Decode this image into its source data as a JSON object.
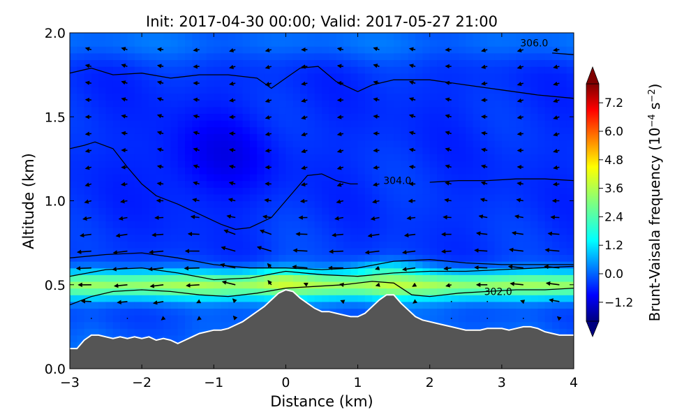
{
  "chart_data": {
    "type": "heatmap",
    "title": "Init: 2017-04-30 00:00; Valid: 2017-05-27 21:00",
    "xlabel": "Distance (km)",
    "ylabel": "Altitude (km)",
    "xlim": [
      -3,
      4
    ],
    "ylim": [
      0,
      2
    ],
    "xticks": [
      -3,
      -2,
      -1,
      0,
      1,
      2,
      3,
      4
    ],
    "xtick_labels": [
      "−3",
      "−2",
      "−1",
      "0",
      "1",
      "2",
      "3",
      "4"
    ],
    "yticks": [
      0.0,
      0.5,
      1.0,
      1.5,
      2.0
    ],
    "ytick_labels": [
      "0.0",
      "0.5",
      "1.0",
      "1.5",
      "2.0"
    ],
    "colorbar": {
      "label_prefix": "Brunt-Vaisala frequency (10",
      "label_exp1": "−4",
      "label_mid": " s",
      "label_exp2": "−2",
      "label_suffix": ")",
      "min": -2.0,
      "max": 8.0,
      "ticks": [
        -1.2,
        0.0,
        1.2,
        2.4,
        3.6,
        4.8,
        6.0,
        7.2
      ],
      "tick_labels": [
        "−1.2",
        "0.0",
        "1.2",
        "2.4",
        "3.6",
        "4.8",
        "6.0",
        "7.2"
      ],
      "extend": "both",
      "colormap": "jet"
    },
    "terrain": {
      "color": "#555555",
      "edge_color": "#ffffff",
      "x": [
        -3.0,
        -2.9,
        -2.8,
        -2.7,
        -2.6,
        -2.5,
        -2.4,
        -2.3,
        -2.2,
        -2.1,
        -2.0,
        -1.9,
        -1.8,
        -1.7,
        -1.6,
        -1.5,
        -1.4,
        -1.3,
        -1.2,
        -1.1,
        -1.0,
        -0.9,
        -0.8,
        -0.7,
        -0.6,
        -0.5,
        -0.4,
        -0.3,
        -0.2,
        -0.1,
        0.0,
        0.1,
        0.2,
        0.3,
        0.4,
        0.5,
        0.6,
        0.7,
        0.8,
        0.9,
        1.0,
        1.1,
        1.2,
        1.3,
        1.4,
        1.5,
        1.6,
        1.7,
        1.8,
        1.9,
        2.0,
        2.1,
        2.2,
        2.3,
        2.4,
        2.5,
        2.6,
        2.7,
        2.8,
        2.9,
        3.0,
        3.1,
        3.2,
        3.3,
        3.4,
        3.5,
        3.6,
        3.7,
        3.8,
        3.9,
        4.0
      ],
      "y": [
        0.12,
        0.12,
        0.17,
        0.2,
        0.2,
        0.19,
        0.18,
        0.19,
        0.18,
        0.19,
        0.18,
        0.19,
        0.17,
        0.18,
        0.17,
        0.15,
        0.17,
        0.19,
        0.21,
        0.22,
        0.23,
        0.23,
        0.24,
        0.26,
        0.28,
        0.31,
        0.34,
        0.37,
        0.41,
        0.45,
        0.47,
        0.46,
        0.42,
        0.39,
        0.36,
        0.34,
        0.34,
        0.33,
        0.32,
        0.31,
        0.31,
        0.33,
        0.37,
        0.41,
        0.44,
        0.44,
        0.39,
        0.35,
        0.31,
        0.29,
        0.28,
        0.27,
        0.26,
        0.25,
        0.24,
        0.23,
        0.23,
        0.23,
        0.24,
        0.24,
        0.24,
        0.23,
        0.24,
        0.25,
        0.25,
        0.24,
        0.22,
        0.21,
        0.2,
        0.2,
        0.2
      ]
    },
    "contours": [
      {
        "level": 302.0,
        "label": "302.0",
        "label_at": [
          2.95,
          0.46
        ],
        "x": [
          -3.0,
          -2.7,
          -2.4,
          -2.0,
          -1.6,
          -1.2,
          -0.8,
          -0.4,
          0.0,
          0.4,
          0.8,
          1.2,
          1.5,
          1.75,
          2.0,
          2.4,
          2.8,
          3.2,
          3.6,
          4.0
        ],
        "y": [
          0.38,
          0.43,
          0.46,
          0.47,
          0.46,
          0.44,
          0.43,
          0.45,
          0.48,
          0.49,
          0.5,
          0.52,
          0.51,
          0.44,
          0.43,
          0.45,
          0.46,
          0.47,
          0.47,
          0.48
        ]
      },
      {
        "level": 302.5,
        "x": [
          -3.0,
          -2.5,
          -2.0,
          -1.5,
          -1.0,
          -0.5,
          0.0,
          0.5,
          1.0,
          1.5,
          2.0,
          2.5,
          3.0,
          3.5,
          4.0
        ],
        "y": [
          0.55,
          0.59,
          0.6,
          0.57,
          0.53,
          0.54,
          0.58,
          0.56,
          0.55,
          0.57,
          0.58,
          0.58,
          0.59,
          0.6,
          0.61
        ]
      },
      {
        "level": 303.0,
        "x": [
          -3.0,
          -2.5,
          -2.0,
          -1.5,
          -1.0,
          -0.5,
          0.0,
          0.5,
          1.0,
          1.5,
          2.0,
          2.5,
          3.0,
          3.5,
          4.0
        ],
        "y": [
          0.66,
          0.68,
          0.69,
          0.66,
          0.62,
          0.6,
          0.6,
          0.59,
          0.6,
          0.64,
          0.65,
          0.63,
          0.62,
          0.62,
          0.62
        ]
      },
      {
        "level": 304.0,
        "label": "304.0",
        "label_at": [
          1.55,
          1.12
        ],
        "x": [
          -3.0,
          -2.8,
          -2.65,
          -2.4,
          -2.2,
          -2.0,
          -1.8,
          -1.5,
          -1.2,
          -0.9,
          -0.7,
          -0.5,
          -0.2,
          0.1,
          0.3,
          0.5,
          0.7,
          0.9,
          1.0
        ],
        "y": [
          1.31,
          1.33,
          1.35,
          1.31,
          1.2,
          1.1,
          1.03,
          0.98,
          0.92,
          0.86,
          0.83,
          0.84,
          0.9,
          1.05,
          1.15,
          1.16,
          1.12,
          1.1,
          1.1
        ]
      },
      {
        "level": 304.0,
        "x": [
          2.0,
          2.4,
          2.8,
          3.2,
          3.6,
          4.0
        ],
        "y": [
          1.11,
          1.12,
          1.12,
          1.13,
          1.13,
          1.12
        ]
      },
      {
        "level": 305.0,
        "x": [
          -3.0,
          -2.7,
          -2.4,
          -2.0,
          -1.6,
          -1.2,
          -0.8,
          -0.4,
          -0.2,
          0.0,
          0.2,
          0.45,
          0.7,
          1.0,
          1.2,
          1.5,
          2.0,
          2.5,
          3.0,
          3.5,
          4.0
        ],
        "y": [
          1.76,
          1.79,
          1.75,
          1.76,
          1.73,
          1.75,
          1.75,
          1.73,
          1.67,
          1.73,
          1.79,
          1.8,
          1.71,
          1.65,
          1.69,
          1.72,
          1.72,
          1.69,
          1.66,
          1.63,
          1.61
        ]
      },
      {
        "level": 306.0,
        "label": "306.0",
        "label_at": [
          3.45,
          1.94
        ],
        "x": [
          3.7,
          4.0
        ],
        "y": [
          1.88,
          1.87
        ]
      }
    ],
    "wind_vectors": {
      "note_units": "km along x and altitude; arrow components in km (plot units)",
      "x": [
        -2.7,
        -2.2,
        -1.7,
        -1.2,
        -0.7,
        -0.2,
        0.3,
        0.8,
        1.3,
        1.8,
        2.3,
        2.8,
        3.3,
        3.8
      ],
      "y": [
        0.3,
        0.4,
        0.5,
        0.6,
        0.7,
        0.8,
        0.9,
        1.0,
        1.1,
        1.2,
        1.3,
        1.4,
        1.5,
        1.6,
        1.7,
        1.8,
        1.9
      ]
    }
  }
}
